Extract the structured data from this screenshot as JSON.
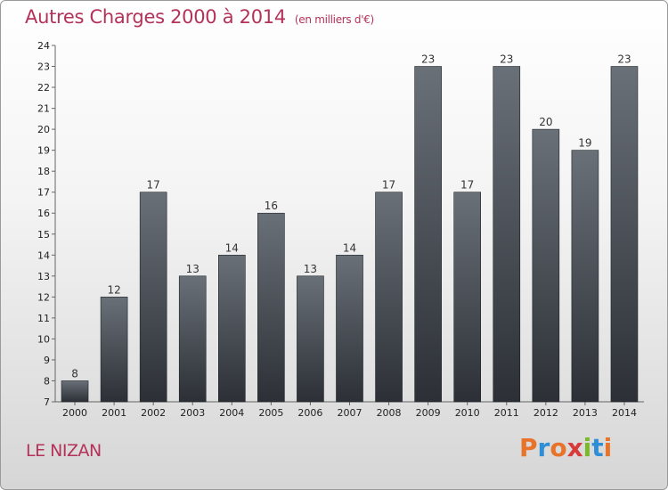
{
  "header": {
    "title": "Autres Charges 2000 à 2014",
    "unit": "(en milliers d'€)"
  },
  "footer": {
    "commune": "LE NIZAN",
    "brand": "Proxiti",
    "brand_colors": [
      "#e8732a",
      "#2f8fd6",
      "#e8732a",
      "#d83a3a",
      "#7ab929",
      "#2f8fd6",
      "#e8732a"
    ]
  },
  "colors": {
    "title": "#b4325a",
    "bar_top": "#6a7078",
    "bar_bottom": "#2c3036"
  },
  "chart_data": {
    "type": "bar",
    "categories": [
      "2000",
      "2001",
      "2002",
      "2003",
      "2004",
      "2005",
      "2006",
      "2007",
      "2008",
      "2009",
      "2010",
      "2011",
      "2012",
      "2013",
      "2014"
    ],
    "values": [
      8,
      12,
      17,
      13,
      14,
      16,
      13,
      14,
      17,
      23,
      17,
      23,
      20,
      19,
      23
    ],
    "title": "Autres Charges 2000 à 2014",
    "xlabel": "",
    "ylabel": "",
    "ylim": [
      7,
      24
    ],
    "yticks": [
      7,
      8,
      9,
      10,
      11,
      12,
      13,
      14,
      15,
      16,
      17,
      18,
      19,
      20,
      21,
      22,
      23,
      24
    ],
    "grid": false,
    "data_labels": true
  }
}
